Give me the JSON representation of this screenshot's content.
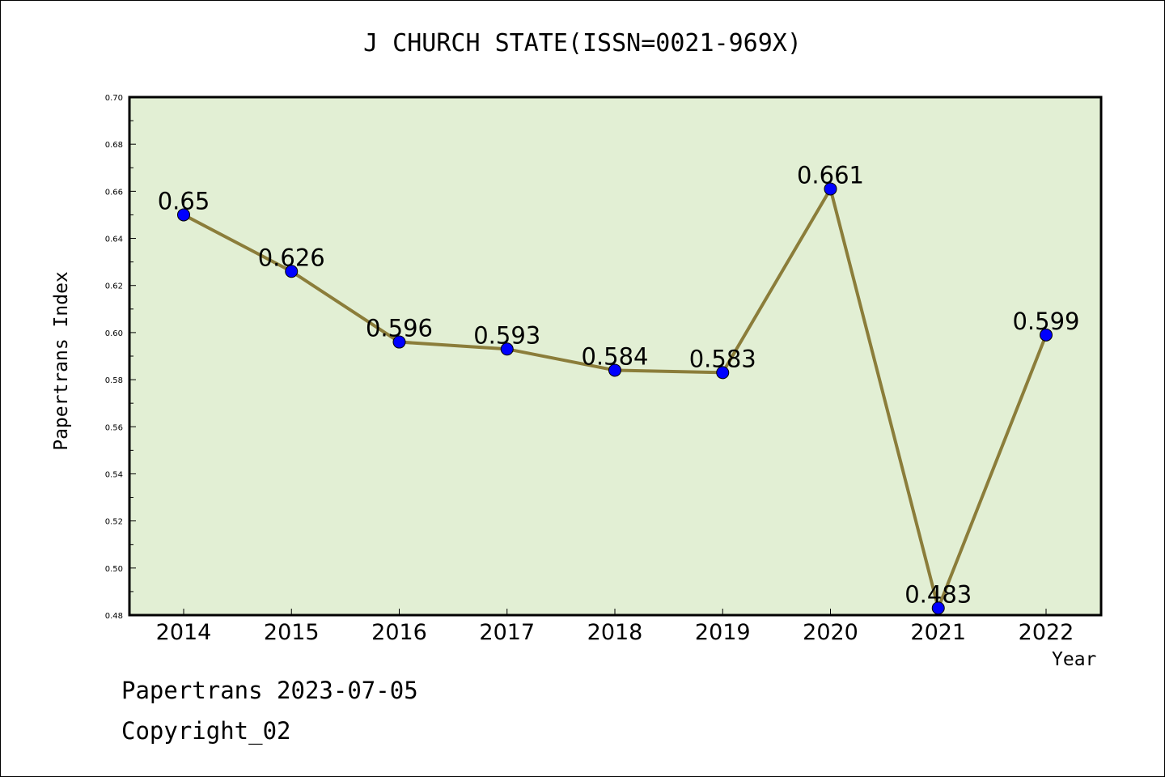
{
  "chart_data": {
    "type": "line",
    "title": "J CHURCH STATE(ISSN=0021-969X)",
    "xlabel": "Year",
    "ylabel": "Papertrans Index",
    "categories": [
      "2014",
      "2015",
      "2016",
      "2017",
      "2018",
      "2019",
      "2020",
      "2021",
      "2022"
    ],
    "values": [
      0.65,
      0.626,
      0.596,
      0.593,
      0.584,
      0.583,
      0.661,
      0.483,
      0.599
    ],
    "data_labels": [
      "0.65",
      "0.626",
      "0.596",
      "0.593",
      "0.584",
      "0.583",
      "0.661",
      "0.483",
      "0.599"
    ],
    "ylim": [
      0.48,
      0.7
    ],
    "yticks": [
      "0.48",
      "0.50",
      "0.52",
      "0.54",
      "0.56",
      "0.58",
      "0.60",
      "0.62",
      "0.64",
      "0.66",
      "0.68",
      "0.70"
    ],
    "grid": false,
    "colors": {
      "plot_background": "#e2efd4",
      "line": "#8b7d3a",
      "marker": "#0000ff"
    }
  },
  "footer": {
    "date_line": "Papertrans 2023-07-05",
    "copyright": "Copyright_02"
  }
}
